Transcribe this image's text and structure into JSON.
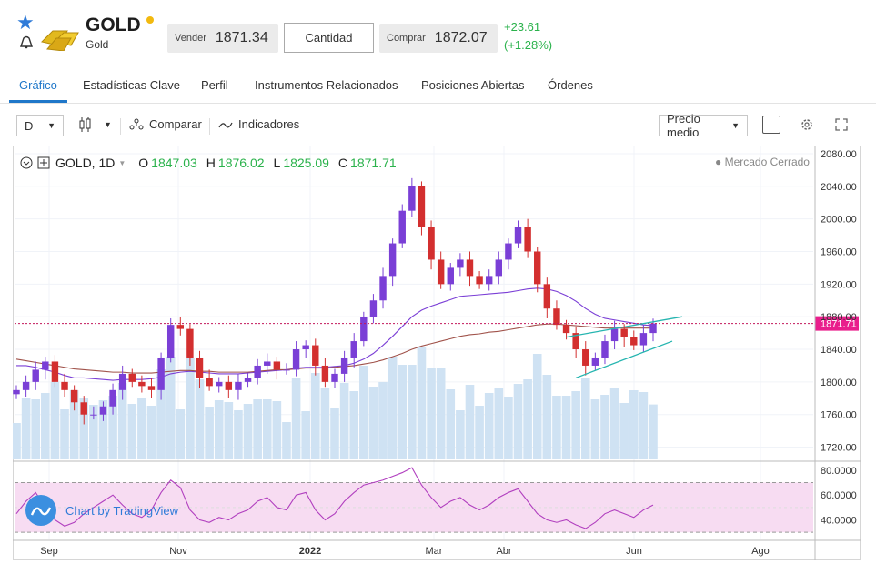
{
  "header": {
    "star_icon": "star-icon",
    "bell_icon": "bell-icon",
    "title": "GOLD",
    "subtitle": "Gold",
    "sell_label": "Vender",
    "sell_value": "1871.34",
    "quantity_label": "Cantidad",
    "buy_label": "Comprar",
    "buy_value": "1872.07",
    "change": "+23.61",
    "change_pct": "(+1.28%)",
    "accent_green": "#2bb24c",
    "status_dot_color": "#f2b90f"
  },
  "tabs": [
    {
      "label": "Gráfico",
      "active": true
    },
    {
      "label": "Estadísticas Clave",
      "active": false
    },
    {
      "label": "Perfil",
      "active": false
    },
    {
      "label": "Instrumentos Relacionados",
      "active": false
    },
    {
      "label": "Posiciones Abiertas",
      "active": false
    },
    {
      "label": "Órdenes",
      "active": false
    }
  ],
  "toolbar": {
    "interval": "D",
    "chart_type_icon": "candles-icon",
    "compare_label": "Comparar",
    "indicators_label": "Indicadores",
    "price_mode": "Precio medio",
    "settings_icon": "gear-icon",
    "fullscreen_icon": "expand-icon"
  },
  "chart_legend": {
    "symbol": "GOLD, 1D",
    "o_label": "O",
    "o_value": "1847.03",
    "h_label": "H",
    "h_value": "1876.02",
    "l_label": "L",
    "l_value": "1825.09",
    "c_label": "C",
    "c_value": "1871.71",
    "market_status": "Mercado Cerrado",
    "current_price_label": "1871.71",
    "badge": "Chart by TradingView"
  },
  "chart_data": [
    {
      "type": "candlestick",
      "x_ticks": [
        "Sep",
        "Nov",
        "2022",
        "Mar",
        "Abr",
        "Jun",
        "Ago"
      ],
      "y_ticks": [
        1720,
        1760,
        1800,
        1840,
        1880,
        1920,
        1960,
        2000,
        2040,
        2080
      ],
      "ylim": [
        1705,
        2090
      ],
      "y_tick_labels": [
        "1720.00",
        "1760.00",
        "1800.00",
        "1840.00",
        "1880.00",
        "1920.00",
        "1960.00",
        "2000.00",
        "2040.00",
        "2080.00"
      ],
      "last_close": 1871.71,
      "close_path": [
        1790,
        1800,
        1815,
        1825,
        1800,
        1790,
        1775,
        1760,
        1760,
        1770,
        1790,
        1810,
        1800,
        1795,
        1790,
        1830,
        1870,
        1865,
        1830,
        1805,
        1795,
        1800,
        1790,
        1800,
        1805,
        1820,
        1825,
        1815,
        1815,
        1840,
        1845,
        1820,
        1800,
        1810,
        1830,
        1850,
        1880,
        1900,
        1930,
        1970,
        2010,
        2040,
        1990,
        1950,
        1920,
        1940,
        1950,
        1930,
        1920,
        1930,
        1950,
        1970,
        1990,
        1960,
        1920,
        1890,
        1870,
        1860,
        1840,
        1820,
        1830,
        1850,
        1865,
        1855,
        1845,
        1860,
        1871.71
      ],
      "series": [
        {
          "name": "",
          "color": "#7b3fd6",
          "values": [
            1820,
            1820,
            1818,
            1815,
            1812,
            1808,
            1805,
            1805,
            1804,
            1803,
            1802,
            1803,
            1803,
            1803,
            1804,
            1806,
            1810,
            1812,
            1813,
            1812,
            1811,
            1810,
            1810,
            1810,
            1811,
            1812,
            1813,
            1814,
            1815,
            1817,
            1818,
            1818,
            1818,
            1819,
            1820,
            1823,
            1828,
            1835,
            1845,
            1856,
            1868,
            1880,
            1888,
            1893,
            1897,
            1901,
            1905,
            1906,
            1907,
            1908,
            1909,
            1910,
            1912,
            1914,
            1915,
            1914,
            1911,
            1906,
            1899,
            1890,
            1883,
            1878,
            1876,
            1874,
            1872,
            1870,
            1869
          ]
        },
        {
          "name": "",
          "color": "#a0524a",
          "values": [
            1828,
            1826,
            1824,
            1822,
            1820,
            1818,
            1816,
            1815,
            1814,
            1813,
            1812,
            1812,
            1811,
            1811,
            1811,
            1812,
            1813,
            1814,
            1814,
            1813,
            1813,
            1812,
            1812,
            1812,
            1812,
            1813,
            1814,
            1815,
            1815,
            1816,
            1817,
            1817,
            1817,
            1818,
            1819,
            1820,
            1822,
            1824,
            1827,
            1831,
            1835,
            1840,
            1844,
            1847,
            1850,
            1853,
            1856,
            1858,
            1859,
            1861,
            1862,
            1864,
            1866,
            1868,
            1870,
            1871,
            1871,
            1870,
            1869,
            1868,
            1867,
            1866,
            1866,
            1866,
            1866,
            1866,
            1866
          ]
        }
      ]
    },
    {
      "type": "line",
      "name": "",
      "y_ticks": [
        40,
        60,
        80
      ],
      "y_tick_labels": [
        "40.0000",
        "60.0000",
        "80.0000"
      ],
      "ylim": [
        25,
        85
      ],
      "band": [
        30,
        70
      ],
      "values": [
        45,
        55,
        62,
        50,
        40,
        35,
        38,
        45,
        50,
        55,
        60,
        52,
        45,
        42,
        48,
        62,
        72,
        66,
        48,
        40,
        38,
        42,
        40,
        45,
        48,
        55,
        58,
        50,
        48,
        60,
        62,
        48,
        40,
        45,
        55,
        62,
        68,
        70,
        72,
        75,
        78,
        82,
        68,
        58,
        50,
        55,
        58,
        52,
        48,
        52,
        58,
        62,
        65,
        55,
        45,
        40,
        38,
        40,
        36,
        33,
        38,
        45,
        48,
        45,
        42,
        48,
        52
      ]
    }
  ]
}
